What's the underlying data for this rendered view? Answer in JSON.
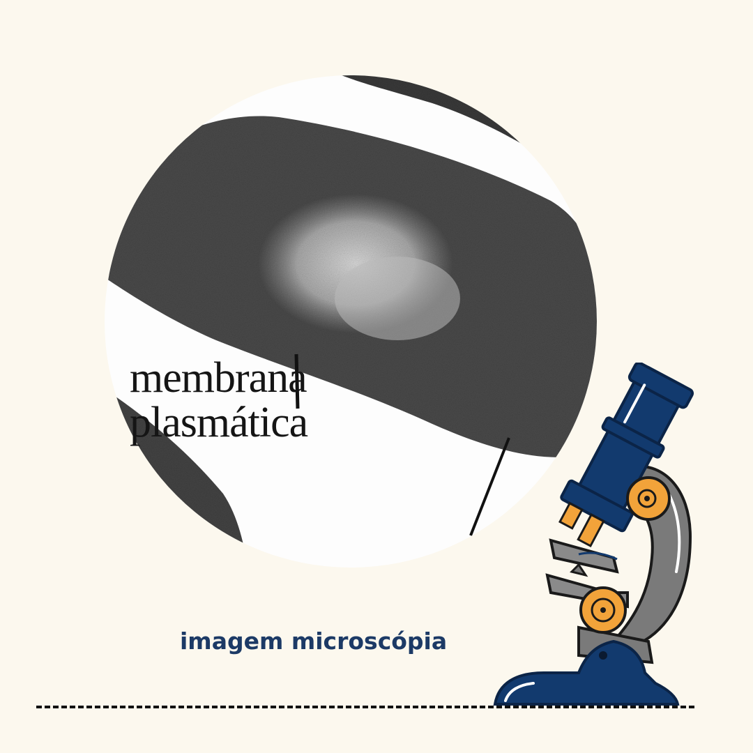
{
  "micrograph": {
    "label_line1": "membrana",
    "label_line2": "plasmática"
  },
  "caption": "imagem microscópia",
  "icons": {
    "microscope": "microscope-icon"
  },
  "colors": {
    "background": "#fcf8ee",
    "caption_text": "#1c3a66",
    "microscope_navy": "#123a6e",
    "microscope_gray": "#7a7a7a",
    "microscope_orange": "#f2a33a"
  }
}
